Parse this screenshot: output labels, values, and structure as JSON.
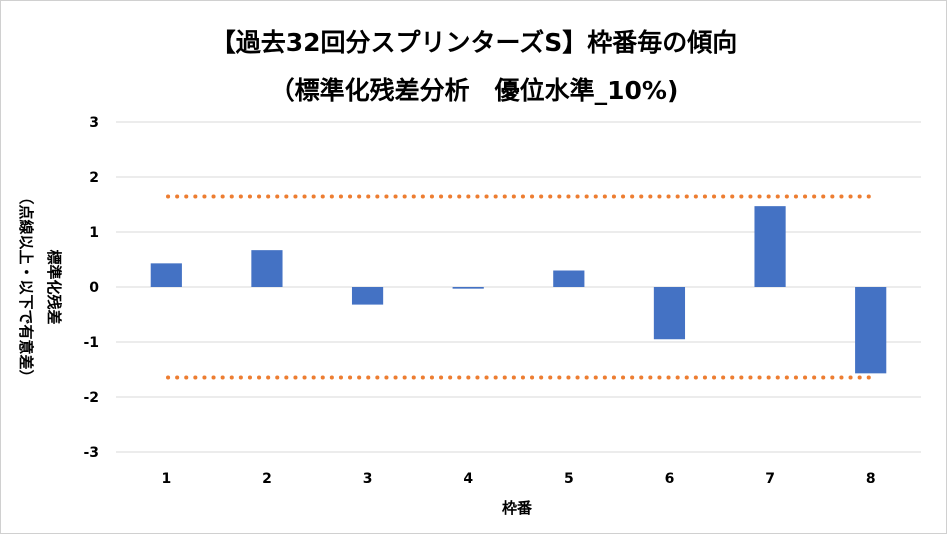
{
  "chart_data": {
    "type": "bar",
    "title": "【過去32回分スプリンターズS】枠番毎の傾向",
    "subtitle": "（標準化残差分析　優位水準_10%)",
    "xlabel": "枠番",
    "ylabel": "標準化残差",
    "ylabel_note": "（点線以上・以下で有意差）",
    "categories": [
      "1",
      "2",
      "3",
      "4",
      "5",
      "6",
      "7",
      "8"
    ],
    "values": [
      0.43,
      0.67,
      -0.32,
      -0.03,
      0.3,
      -0.95,
      1.47,
      -1.57
    ],
    "ylim": [
      -3,
      3
    ],
    "yticks": [
      3,
      2,
      1,
      0,
      -1,
      -2,
      -3
    ],
    "threshold_lines": [
      1.645,
      -1.645
    ],
    "grid": true,
    "legend": "none",
    "colors": {
      "bar": "#4472c4",
      "threshold": "#ed7d31",
      "grid": "#d9d9d9"
    }
  }
}
